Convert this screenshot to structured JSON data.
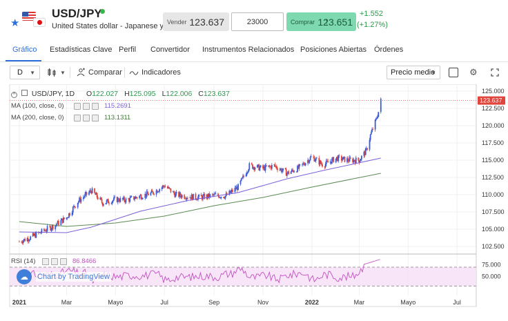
{
  "header": {
    "symbol": "USD/JPY",
    "description": "United States dollar - Japanese yen",
    "sell_label": "Vender",
    "sell_price": "123.637",
    "quantity": "23000",
    "buy_label": "Comprar",
    "buy_arrow": "↑",
    "buy_price": "123.651",
    "change_abs": "+1.552",
    "change_pct": "(+1.27%)",
    "status_color": "#3bb54a"
  },
  "tabs": [
    {
      "label": "Gráfico",
      "active": true
    },
    {
      "label": "Estadísticas Clave"
    },
    {
      "label": "Perfil"
    },
    {
      "label": "Convertidor"
    },
    {
      "label": "Instrumentos Relacionados"
    },
    {
      "label": "Posiciones Abiertas"
    },
    {
      "label": "Órdenes"
    }
  ],
  "toolbar": {
    "interval": "D",
    "compare_label": "Comparar",
    "indicators_label": "Indicadores",
    "price_type": "Precio medio",
    "icons": [
      "candles-icon",
      "compare-icon",
      "indicators-icon",
      "square-icon",
      "settings-icon",
      "fullscreen-icon"
    ]
  },
  "chart": {
    "legend": {
      "symbol": "USD/JPY, 1D",
      "o_label": "O",
      "o_value": "122.027",
      "h_label": "H",
      "h_value": "125.095",
      "l_label": "L",
      "l_value": "122.006",
      "c_label": "C",
      "c_value": "123.637"
    },
    "ma100": {
      "label": "MA (100, close, 0)",
      "value": "115.2691",
      "color": "#7b5fd9"
    },
    "ma200": {
      "label": "MA (200, close, 0)",
      "value": "113.1311",
      "color": "#5a8a52"
    },
    "rsi": {
      "label": "RSI (14)",
      "value": "86.8466",
      "color": "#c24fc2"
    },
    "watermark": "Chart by TradingView",
    "last_price_tag": "123.637",
    "up_color": "#3b5bd6",
    "down_color": "#e0443a"
  },
  "chart_data": {
    "type": "candlestick",
    "y_ticks": [
      "125.000",
      "122.500",
      "120.000",
      "117.500",
      "115.000",
      "112.500",
      "110.000",
      "107.500",
      "105.000",
      "102.500"
    ],
    "ylim": [
      101.5,
      126.0
    ],
    "rsi_ticks": [
      "75.000",
      "50.000"
    ],
    "x_ticks": [
      "2021",
      "Mar",
      "Mayo",
      "Jul",
      "Sep",
      "Nov",
      "2022",
      "Mar",
      "Mayo",
      "Jul"
    ],
    "price_series": [
      [
        "2021-01-01",
        103.2
      ],
      [
        "2021-01-15",
        103.8
      ],
      [
        "2021-02-01",
        104.8
      ],
      [
        "2021-02-15",
        105.6
      ],
      [
        "2021-03-01",
        106.7
      ],
      [
        "2021-03-15",
        109.0
      ],
      [
        "2021-04-01",
        110.6
      ],
      [
        "2021-04-15",
        108.8
      ],
      [
        "2021-05-01",
        109.3
      ],
      [
        "2021-05-15",
        109.2
      ],
      [
        "2021-06-01",
        109.8
      ],
      [
        "2021-06-15",
        110.2
      ],
      [
        "2021-07-01",
        111.3
      ],
      [
        "2021-07-15",
        110.0
      ],
      [
        "2021-08-01",
        109.7
      ],
      [
        "2021-08-15",
        109.6
      ],
      [
        "2021-09-01",
        109.9
      ],
      [
        "2021-09-15",
        109.8
      ],
      [
        "2021-10-01",
        111.1
      ],
      [
        "2021-10-15",
        114.2
      ],
      [
        "2021-11-01",
        113.8
      ],
      [
        "2021-11-15",
        114.2
      ],
      [
        "2021-12-01",
        113.1
      ],
      [
        "2021-12-15",
        113.8
      ],
      [
        "2022-01-01",
        115.5
      ],
      [
        "2022-01-15",
        114.3
      ],
      [
        "2022-02-01",
        115.3
      ],
      [
        "2022-02-15",
        115.0
      ],
      [
        "2022-03-01",
        115.0
      ],
      [
        "2022-03-10",
        116.4
      ],
      [
        "2022-03-15",
        118.6
      ],
      [
        "2022-03-22",
        120.8
      ],
      [
        "2022-03-25",
        122.0
      ],
      [
        "2022-03-28",
        123.6
      ]
    ],
    "ma100_series": [
      [
        "2021-01-01",
        104.6
      ],
      [
        "2021-03-01",
        104.5
      ],
      [
        "2021-04-01",
        105.3
      ],
      [
        "2021-06-01",
        107.6
      ],
      [
        "2021-08-01",
        109.2
      ],
      [
        "2021-10-01",
        110.3
      ],
      [
        "2021-12-01",
        112.3
      ],
      [
        "2022-01-15",
        113.5
      ],
      [
        "2022-03-28",
        115.3
      ]
    ],
    "ma200_series": [
      [
        "2021-01-01",
        106.1
      ],
      [
        "2021-03-01",
        105.4
      ],
      [
        "2021-05-01",
        105.9
      ],
      [
        "2021-07-01",
        106.9
      ],
      [
        "2021-09-01",
        108.4
      ],
      [
        "2021-11-01",
        109.6
      ],
      [
        "2022-01-01",
        111.1
      ],
      [
        "2022-03-28",
        113.1
      ]
    ]
  }
}
